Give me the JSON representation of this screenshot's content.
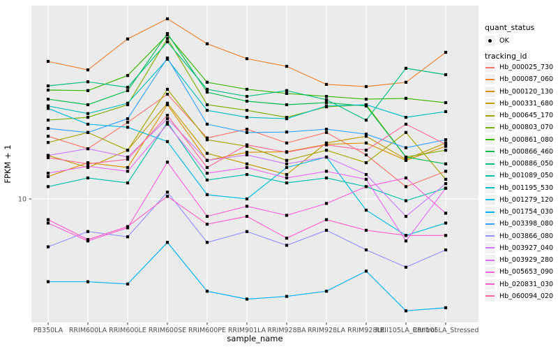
{
  "figure": {
    "background": "#FFFFFF",
    "panel_background": "#EBEBEB",
    "gridline_color": "#FFFFFF",
    "tick_color": "#333333",
    "tick_label_color": "#4D4D4D",
    "point_color": "#000000"
  },
  "axes": {
    "x": {
      "label": "sample_name"
    },
    "y": {
      "label": "FPKM + 1",
      "tick_labels": [
        "10"
      ],
      "scale": "log10"
    }
  },
  "legend": {
    "quant_status": {
      "title": "quant_status",
      "items": [
        {
          "label": "OK",
          "marker": "point",
          "color": "#000000"
        }
      ]
    },
    "tracking_id": {
      "title": "tracking_id"
    }
  },
  "chart_data": {
    "type": "line",
    "title": "",
    "xlabel": "sample_name",
    "ylabel": "FPKM + 1",
    "y_scale": "log10",
    "y_tick_value": 10,
    "ylim": [
      2.4,
      95
    ],
    "grid": "major-only",
    "legend_position": "right",
    "point_shape": "square",
    "categories": [
      "PB350LA",
      "RRIM600LA",
      "RRIM600LE",
      "RRIM600SE",
      "RRIM600PE",
      "RRIM901LA",
      "RRIM928BA",
      "RRIM928LA",
      "RRIM928LE",
      "RRII105LA_Control",
      "RRII105LA_Stressed"
    ],
    "series": [
      {
        "name": "Hb_000025_730",
        "color": "#F8766D",
        "values": [
          20.4,
          17.7,
          23.9,
          32.9,
          20.0,
          22.1,
          18.9,
          21.3,
          16.5,
          11.5,
          13.7
        ]
      },
      {
        "name": "Hb_000087_060",
        "color": "#EA8331",
        "values": [
          47.8,
          43.4,
          61.7,
          77.6,
          58.4,
          49.3,
          45.2,
          36.8,
          35.9,
          37.7,
          53.0
        ]
      },
      {
        "name": "Hb_000120_130",
        "color": "#D89000",
        "values": [
          12.9,
          15.1,
          14.3,
          29.2,
          15.5,
          17.0,
          17.1,
          18.6,
          18.9,
          15.5,
          18.2
        ]
      },
      {
        "name": "Hb_000331_680",
        "color": "#C09B00",
        "values": [
          16.4,
          14.3,
          17.4,
          29.7,
          16.8,
          14.9,
          13.2,
          18.9,
          20.4,
          15.7,
          18.9
        ]
      },
      {
        "name": "Hb_000645_170",
        "color": "#A3A500",
        "values": [
          19.0,
          21.3,
          17.4,
          34.8,
          19.6,
          18.2,
          15.5,
          17.4,
          15.1,
          21.3,
          12.5
        ]
      },
      {
        "name": "Hb_000803_070",
        "color": "#7CAE00",
        "values": [
          24.5,
          25.3,
          29.2,
          62.0,
          29.2,
          27.4,
          25.3,
          28.5,
          29.2,
          16.1,
          17.4
        ]
      },
      {
        "name": "Hb_000861_080",
        "color": "#39B600",
        "values": [
          34.5,
          34.3,
          40.7,
          64.6,
          37.7,
          34.8,
          33.2,
          32.1,
          31.1,
          31.4,
          29.9
        ]
      },
      {
        "name": "Hb_000866_460",
        "color": "#00BB4E",
        "values": [
          31.1,
          29.2,
          34.3,
          65.6,
          33.7,
          30.4,
          29.2,
          29.9,
          28.8,
          16.1,
          14.9
        ]
      },
      {
        "name": "Hb_000886_050",
        "color": "#00BF7D",
        "values": [
          36.2,
          37.9,
          35.6,
          59.7,
          34.8,
          32.1,
          34.3,
          30.9,
          24.5,
          44.2,
          41.1
        ]
      },
      {
        "name": "Hb_001089_050",
        "color": "#00C1A3",
        "values": [
          11.5,
          12.7,
          12.0,
          23.9,
          12.4,
          13.2,
          12.0,
          12.7,
          11.5,
          9.8,
          11.3
        ]
      },
      {
        "name": "Hb_001195_530",
        "color": "#00BFC4",
        "values": [
          28.8,
          26.4,
          29.7,
          49.0,
          27.4,
          25.3,
          24.9,
          28.8,
          29.2,
          25.3,
          27.0
        ]
      },
      {
        "name": "Hb_001279_120",
        "color": "#00BAE0",
        "values": [
          28.0,
          23.4,
          22.6,
          19.2,
          10.5,
          10.0,
          14.3,
          16.1,
          8.8,
          6.6,
          7.6
        ]
      },
      {
        "name": "Hb_001754_030",
        "color": "#00B0F6",
        "values": [
          3.9,
          3.9,
          3.8,
          6.1,
          3.5,
          3.2,
          3.3,
          3.5,
          4.4,
          2.8,
          2.9
        ]
      },
      {
        "name": "Hb_003398_080",
        "color": "#35A2FF",
        "values": [
          22.3,
          21.3,
          24.9,
          49.7,
          23.4,
          21.3,
          21.4,
          22.1,
          20.9,
          17.9,
          19.6
        ]
      },
      {
        "name": "Hb_003866_080",
        "color": "#9590FF",
        "values": [
          5.8,
          6.9,
          6.5,
          10.8,
          6.1,
          6.9,
          5.9,
          7.0,
          5.6,
          4.6,
          5.6
        ]
      },
      {
        "name": "Hb_003927_040",
        "color": "#C77CFF",
        "values": [
          16.4,
          17.7,
          16.1,
          24.9,
          15.5,
          16.5,
          14.9,
          16.1,
          13.2,
          8.2,
          11.9
        ]
      },
      {
        "name": "Hb_003929_280",
        "color": "#E76BF3",
        "values": [
          13.4,
          14.5,
          13.7,
          23.4,
          13.4,
          14.3,
          12.7,
          13.7,
          12.5,
          6.2,
          11.3
        ]
      },
      {
        "name": "Hb_005653_090",
        "color": "#FA62DB",
        "values": [
          7.6,
          6.2,
          7.2,
          15.2,
          8.2,
          9.2,
          8.3,
          9.5,
          11.5,
          12.7,
          8.5
        ]
      },
      {
        "name": "Hb_020831_030",
        "color": "#FF61C9",
        "values": [
          7.9,
          6.3,
          7.3,
          10.3,
          7.5,
          8.2,
          6.4,
          7.9,
          7.0,
          6.6,
          6.6
        ]
      },
      {
        "name": "Hb_060094_020",
        "color": "#FF6A98",
        "values": [
          16.0,
          14.9,
          15.7,
          25.9,
          14.3,
          18.5,
          17.0,
          18.5,
          17.4,
          23.4,
          18.6
        ]
      }
    ]
  }
}
